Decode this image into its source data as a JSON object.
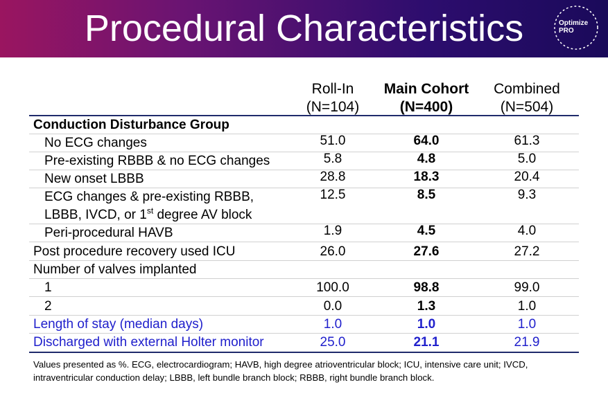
{
  "slide": {
    "title": "Procedural Characteristics",
    "logo": {
      "line1": "Optimize",
      "line2": "PRO"
    }
  },
  "columns": [
    {
      "name": "Roll-In",
      "n": "(N=104)"
    },
    {
      "name": "Main Cohort",
      "n": "(N=400)"
    },
    {
      "name": "Combined",
      "n": "(N=504)"
    }
  ],
  "rows": [
    {
      "label": "Conduction Disturbance Group",
      "values": [
        "",
        "",
        ""
      ]
    },
    {
      "label": "No ECG changes",
      "values": [
        "51.0",
        "64.0",
        "61.3"
      ]
    },
    {
      "label": "Pre-existing RBBB & no ECG changes",
      "values": [
        "5.8",
        "4.8",
        "5.0"
      ]
    },
    {
      "label": "New onset LBBB",
      "values": [
        "28.8",
        "18.3",
        "20.4"
      ]
    },
    {
      "label": "ECG changes & pre-existing RBBB,",
      "label2a": "LBBB, IVCD, or 1",
      "label2sup": "st",
      "label2b": " degree AV block",
      "values": [
        "12.5",
        "8.5",
        "9.3"
      ]
    },
    {
      "label": "Peri-procedural HAVB",
      "values": [
        "1.9",
        "4.5",
        "4.0"
      ]
    },
    {
      "label": "Post procedure recovery used ICU",
      "values": [
        "26.0",
        "27.6",
        "27.2"
      ]
    },
    {
      "label": "Number of valves implanted",
      "values": [
        "",
        "",
        ""
      ]
    },
    {
      "label": "1",
      "values": [
        "100.0",
        "98.8",
        "99.0"
      ]
    },
    {
      "label": "2",
      "values": [
        "0.0",
        "1.3",
        "1.0"
      ]
    },
    {
      "label": "Length of stay (median days)",
      "values": [
        "1.0",
        "1.0",
        "1.0"
      ]
    },
    {
      "label": "Discharged with external Holter monitor",
      "values": [
        "25.0",
        "21.1",
        "21.9"
      ]
    }
  ],
  "footnote": "Values presented as %. ECG, electrocardiogram; HAVB, high degree atrioventricular block; ICU, intensive care unit; IVCD, intraventricular conduction delay; LBBB, left bundle branch block; RBBB, right bundle branch block.",
  "colors": {
    "accent_blue": "#2020cc",
    "rule": "#1f2a6b"
  }
}
